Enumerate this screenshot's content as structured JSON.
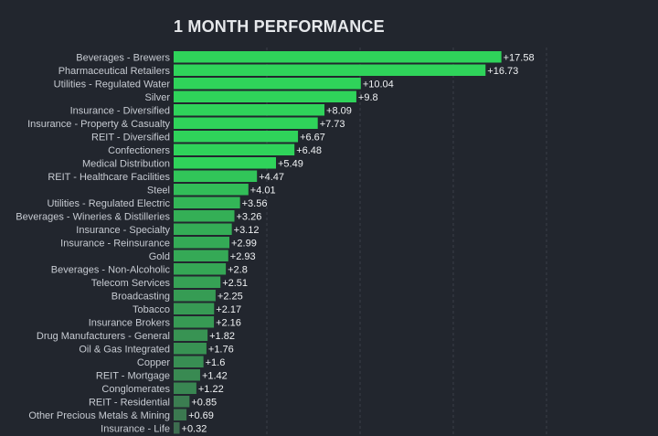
{
  "chart_data": {
    "type": "bar",
    "orientation": "horizontal",
    "title": "1 MONTH PERFORMANCE",
    "categories": [
      "Beverages - Brewers",
      "Pharmaceutical Retailers",
      "Utilities - Regulated Water",
      "Silver",
      "Insurance - Diversified",
      "Insurance - Property & Casualty",
      "REIT - Diversified",
      "Confectioners",
      "Medical Distribution",
      "REIT - Healthcare Facilities",
      "Steel",
      "Utilities - Regulated Electric",
      "Beverages - Wineries & Distilleries",
      "Insurance - Specialty",
      "Insurance - Reinsurance",
      "Gold",
      "Beverages - Non-Alcoholic",
      "Telecom Services",
      "Broadcasting",
      "Tobacco",
      "Insurance Brokers",
      "Drug Manufacturers - General",
      "Oil & Gas Integrated",
      "Copper",
      "REIT - Mortgage",
      "Conglomerates",
      "REIT - Residential",
      "Other Precious Metals & Mining",
      "Insurance - Life"
    ],
    "values": [
      17.58,
      16.73,
      10.04,
      9.8,
      8.09,
      7.73,
      6.67,
      6.48,
      5.49,
      4.47,
      4.01,
      3.56,
      3.26,
      3.12,
      2.99,
      2.93,
      2.8,
      2.51,
      2.25,
      2.17,
      2.16,
      1.82,
      1.76,
      1.6,
      1.42,
      1.22,
      0.85,
      0.69,
      0.32
    ],
    "value_labels": [
      "+17.58",
      "+16.73",
      "+10.04",
      "+9.8",
      "+8.09",
      "+7.73",
      "+6.67",
      "+6.48",
      "+5.49",
      "+4.47",
      "+4.01",
      "+3.56",
      "+3.26",
      "+3.12",
      "+2.99",
      "+2.93",
      "+2.8",
      "+2.51",
      "+2.25",
      "+2.17",
      "+2.16",
      "+1.82",
      "+1.76",
      "+1.6",
      "+1.42",
      "+1.22",
      "+0.85",
      "+0.69",
      "+0.32"
    ],
    "xlim": [
      0,
      20
    ],
    "grid": "vertical dashed",
    "colors": {
      "bright": "#2fd35a",
      "dim": "#3d6b4f",
      "background": "#22262e",
      "grid": "#3a3f48"
    }
  }
}
